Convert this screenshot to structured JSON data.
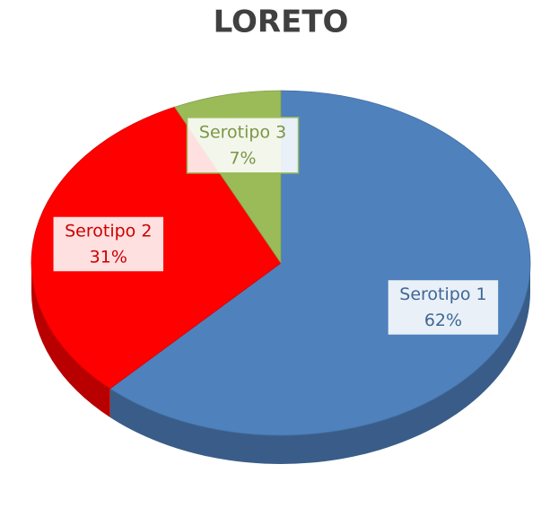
{
  "chart_data": {
    "type": "pie",
    "title": "LORETO",
    "categories": [
      "Serotipo 1",
      "Serotipo 2",
      "Serotipo 3"
    ],
    "values": [
      62,
      31,
      7
    ],
    "value_labels": [
      "62%",
      "31%",
      "7%"
    ],
    "colors": [
      "#4f81bd",
      "#ff0000",
      "#9bbb59"
    ]
  }
}
